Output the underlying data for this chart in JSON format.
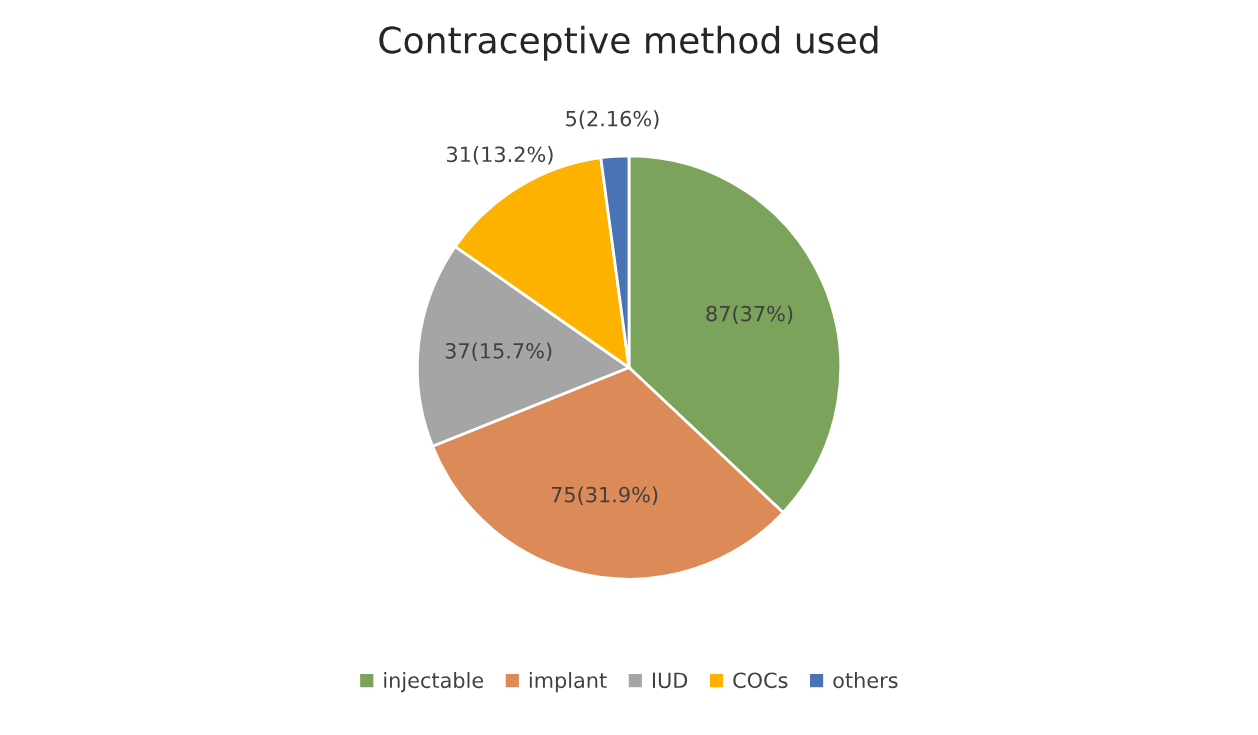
{
  "chart_data": {
    "type": "pie",
    "title": "Contraceptive method used",
    "categories": [
      "injectable",
      "implant",
      "IUD",
      "COCs",
      "others"
    ],
    "values": [
      87,
      75,
      37,
      31,
      5
    ],
    "colors": [
      "#7ba35c",
      "#dc8a57",
      "#a5a5a5",
      "#fdb200",
      "#4a73b5"
    ],
    "value_labels": [
      "87(37%)",
      "75(31.9%)",
      "37(15.7%)",
      "31(13.2%)",
      "5(2.16%)"
    ],
    "legend": "bottom"
  }
}
